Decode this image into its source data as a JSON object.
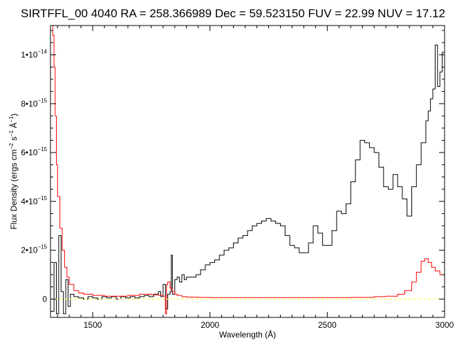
{
  "chart_data": {
    "type": "line",
    "title": "SIRTFFL_00 4040 RA = 258.366989 Dec =  59.523150 FUV = 22.99 NUV = 17.12",
    "xlabel": "Wavelength (Å)",
    "ylabel": "Flux Density (ergs cm⁻² s⁻¹ Å⁻¹)",
    "xlim": [
      1320,
      3000
    ],
    "ylim": [
      -7.5e-16,
      1.12e-14
    ],
    "x_ticks": [
      {
        "value": 1500,
        "label": "1500"
      },
      {
        "value": 2000,
        "label": "2000"
      },
      {
        "value": 2500,
        "label": "2500"
      },
      {
        "value": 3000,
        "label": "3000"
      }
    ],
    "y_ticks": [
      {
        "value": 0,
        "label": "0",
        "mantissa": "",
        "exponent": ""
      },
      {
        "value": 2e-15,
        "label": "2•10⁻¹⁵",
        "mantissa": "2•10",
        "exponent": "−15"
      },
      {
        "value": 4e-15,
        "label": "4•10⁻¹⁵",
        "mantissa": "4•10",
        "exponent": "−15"
      },
      {
        "value": 6e-15,
        "label": "6•10⁻¹⁵",
        "mantissa": "6•10",
        "exponent": "−15"
      },
      {
        "value": 8e-15,
        "label": "8•10⁻¹⁵",
        "mantissa": "8•10",
        "exponent": "−15"
      },
      {
        "value": 1e-14,
        "label": "1•10⁻¹⁴",
        "mantissa": "1•10",
        "exponent": "−14"
      }
    ],
    "legend": "none",
    "grid": false,
    "series": [
      {
        "color": "#000000",
        "x": [
          1325,
          1335,
          1345,
          1355,
          1365,
          1375,
          1385,
          1395,
          1405,
          1420,
          1440,
          1460,
          1480,
          1500,
          1520,
          1540,
          1560,
          1580,
          1600,
          1620,
          1640,
          1660,
          1680,
          1700,
          1720,
          1740,
          1760,
          1780,
          1790,
          1800,
          1810,
          1820,
          1830,
          1835,
          1840,
          1850,
          1860,
          1870,
          1880,
          1890,
          1900,
          1920,
          1940,
          1960,
          1980,
          2000,
          2020,
          2040,
          2060,
          2080,
          2100,
          2120,
          2140,
          2160,
          2180,
          2200,
          2220,
          2240,
          2260,
          2280,
          2300,
          2320,
          2340,
          2360,
          2380,
          2400,
          2420,
          2440,
          2460,
          2480,
          2500,
          2520,
          2540,
          2560,
          2580,
          2600,
          2620,
          2640,
          2660,
          2680,
          2700,
          2720,
          2740,
          2760,
          2780,
          2800,
          2820,
          2840,
          2860,
          2880,
          2900,
          2920,
          2930,
          2940,
          2950,
          2960,
          2970,
          2980,
          2990,
          3000
        ],
        "y": [
          -5e-16,
          1.5e-15,
          -6e-16,
          2.6e-15,
          3e-16,
          -6e-16,
          8e-16,
          -3e-16,
          2e-16,
          1e-16,
          5e-17,
          0.0,
          1e-16,
          5e-17,
          0.0,
          1e-16,
          5e-17,
          1e-16,
          0.0,
          1e-16,
          5e-17,
          1e-16,
          5e-17,
          1e-16,
          1.5e-16,
          1e-16,
          2e-16,
          3e-16,
          1e-16,
          6e-16,
          -4e-16,
          2e-16,
          3e-16,
          1.8e-15,
          2e-16,
          8e-16,
          9e-16,
          7e-16,
          1e-15,
          8e-16,
          9e-16,
          9e-16,
          1e-15,
          1.2e-15,
          1.4e-15,
          1.5e-15,
          1.6e-15,
          1.8e-15,
          2e-15,
          2.1e-15,
          2.3e-15,
          2.5e-15,
          2.6e-15,
          2.8e-15,
          3e-15,
          3.1e-15,
          3.2e-15,
          3.3e-15,
          3.2e-15,
          3.1e-15,
          3e-15,
          2.6e-15,
          2.2e-15,
          2.1e-15,
          1.9e-15,
          1.9e-15,
          2.3e-15,
          3e-15,
          2.7e-15,
          2.2e-15,
          2.2e-15,
          2.8e-15,
          3.6e-15,
          3.5e-15,
          3.9e-15,
          4.8e-15,
          5.7e-15,
          6.5e-15,
          6.4e-15,
          6.2e-15,
          6e-15,
          5.4e-15,
          4.6e-15,
          4.5e-15,
          5.1e-15,
          4.6e-15,
          4.1e-15,
          3.4e-15,
          4.6e-15,
          5.5e-15,
          6.4e-15,
          7.3e-15,
          7.7e-15,
          8.2e-15,
          8.6e-15,
          1.04e-14,
          8.7e-15,
          9.3e-15,
          1.01e-14,
          8.6e-15
        ]
      },
      {
        "color": "#ff0000",
        "x": [
          1325,
          1330,
          1335,
          1340,
          1345,
          1350,
          1360,
          1370,
          1380,
          1390,
          1400,
          1420,
          1440,
          1460,
          1500,
          1550,
          1600,
          1650,
          1700,
          1750,
          1780,
          1800,
          1810,
          1815,
          1820,
          1830,
          1840,
          1850,
          1860,
          1880,
          1900,
          1950,
          2000,
          2100,
          2200,
          2300,
          2400,
          2500,
          2600,
          2700,
          2750,
          2800,
          2830,
          2860,
          2880,
          2900,
          2915,
          2930,
          2945,
          2960,
          2980,
          3000
        ],
        "y": [
          1.12e-14,
          1.08e-14,
          9.5e-15,
          7.5e-15,
          5.5e-15,
          4.2e-15,
          2.9e-15,
          2e-15,
          1.3e-15,
          9e-16,
          6e-16,
          3.5e-16,
          2.5e-16,
          2e-16,
          1.5e-16,
          1.2e-16,
          1.2e-16,
          1.5e-16,
          2e-16,
          1.8e-16,
          1.5e-16,
          1.2e-16,
          -6e-16,
          6e-16,
          7e-16,
          4.5e-16,
          3e-16,
          2e-16,
          1.5e-16,
          1e-16,
          8e-17,
          7e-17,
          6e-17,
          6e-17,
          6e-17,
          6e-17,
          6e-17,
          6e-17,
          7e-17,
          1e-16,
          1.2e-16,
          2e-16,
          3.5e-16,
          7e-16,
          1.1e-15,
          1.55e-15,
          1.65e-15,
          1.5e-15,
          1.3e-15,
          1.15e-15,
          1e-15,
          9e-16
        ]
      },
      {
        "color": "#ffff66",
        "dashed": true,
        "x": [
          1320,
          3000
        ],
        "y": [
          0,
          0
        ]
      }
    ]
  }
}
